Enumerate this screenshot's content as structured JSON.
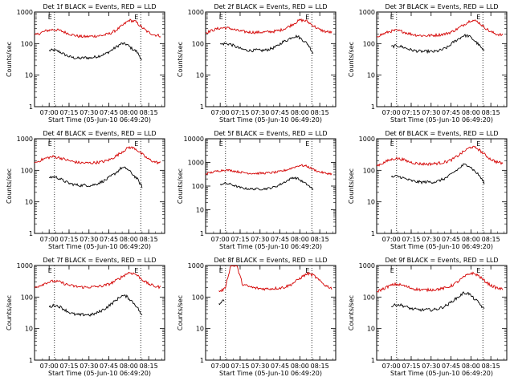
{
  "chart_data": [
    {
      "type": "line",
      "title": "Det 1f BLACK = Events, RED = LLD",
      "xlabel": "Start Time (05-Jun-10 06:49:20)",
      "ylabel": "Counts/sec",
      "x_ticks": [
        "07:00",
        "07:15",
        "07:30",
        "07:45",
        "08:00",
        "08:15"
      ],
      "y_ticks": [
        "1",
        "10",
        "100",
        "1000"
      ],
      "ylim": [
        1,
        1000
      ],
      "log_y": true,
      "markers": [
        {
          "x": "07:04",
          "label": "E"
        },
        {
          "x": "08:09",
          "label": "E"
        }
      ],
      "series": [
        {
          "name": "Events",
          "color": "#000000",
          "x_start": "07:00",
          "x_end": "08:10",
          "values": [
            60,
            62,
            55,
            45,
            38,
            35,
            34,
            36,
            35,
            38,
            42,
            48,
            60,
            78,
            100,
            95,
            70,
            55,
            30
          ]
        },
        {
          "name": "LLD",
          "color": "#d40000",
          "x_start": "06:49",
          "x_end": "08:24",
          "values": [
            180,
            220,
            260,
            280,
            260,
            220,
            190,
            170,
            165,
            170,
            175,
            185,
            210,
            270,
            380,
            550,
            500,
            330,
            230,
            190,
            175
          ]
        }
      ]
    },
    {
      "type": "line",
      "title": "Det 2f BLACK = Events, RED = LLD",
      "xlabel": "Start Time (05-Jun-10 06:49:20)",
      "ylabel": "Counts/sec",
      "x_ticks": [
        "07:00",
        "07:15",
        "07:30",
        "07:45",
        "08:00",
        "08:15"
      ],
      "y_ticks": [
        "1",
        "10",
        "100",
        "1000"
      ],
      "ylim": [
        1,
        1000
      ],
      "log_y": true,
      "markers": [
        {
          "x": "07:04",
          "label": "E"
        },
        {
          "x": "08:09",
          "label": "E"
        }
      ],
      "series": [
        {
          "name": "Events",
          "color": "#000000",
          "x_start": "07:00",
          "x_end": "08:10",
          "values": [
            95,
            100,
            95,
            80,
            68,
            62,
            60,
            62,
            60,
            63,
            70,
            82,
            110,
            130,
            165,
            170,
            130,
            95,
            50
          ]
        },
        {
          "name": "LLD",
          "color": "#d40000",
          "x_start": "06:49",
          "x_end": "08:24",
          "values": [
            220,
            260,
            300,
            320,
            300,
            260,
            240,
            230,
            225,
            230,
            235,
            245,
            270,
            330,
            430,
            560,
            520,
            380,
            280,
            240,
            225
          ]
        }
      ]
    },
    {
      "type": "line",
      "title": "Det 3f BLACK = Events, RED = LLD",
      "xlabel": "Start Time (05-Jun-10 06:49:20)",
      "ylabel": "Counts/sec",
      "x_ticks": [
        "07:00",
        "07:15",
        "07:30",
        "07:45",
        "08:00",
        "08:15"
      ],
      "y_ticks": [
        "1",
        "10",
        "100",
        "1000"
      ],
      "ylim": [
        1,
        1000
      ],
      "log_y": true,
      "markers": [
        {
          "x": "07:04",
          "label": "E"
        },
        {
          "x": "08:09",
          "label": "E"
        }
      ],
      "series": [
        {
          "name": "Events",
          "color": "#000000",
          "x_start": "07:00",
          "x_end": "08:10",
          "values": [
            80,
            85,
            80,
            70,
            62,
            58,
            56,
            57,
            55,
            58,
            65,
            78,
            110,
            140,
            180,
            175,
            130,
            90,
            55
          ]
        },
        {
          "name": "LLD",
          "color": "#d40000",
          "x_start": "06:49",
          "x_end": "08:24",
          "values": [
            170,
            200,
            240,
            260,
            245,
            210,
            190,
            180,
            178,
            182,
            190,
            205,
            240,
            310,
            420,
            560,
            500,
            340,
            240,
            200,
            185
          ]
        }
      ]
    },
    {
      "type": "line",
      "title": "Det 4f BLACK = Events, RED = LLD",
      "xlabel": "Start Time (05-Jun-10 06:49:20)",
      "ylabel": "Counts/sec",
      "x_ticks": [
        "07:00",
        "07:15",
        "07:30",
        "07:45",
        "08:00",
        "08:15"
      ],
      "y_ticks": [
        "1",
        "10",
        "100",
        "1000"
      ],
      "ylim": [
        1,
        1000
      ],
      "log_y": true,
      "markers": [
        {
          "x": "07:04",
          "label": "E"
        },
        {
          "x": "08:09",
          "label": "E"
        }
      ],
      "series": [
        {
          "name": "Events",
          "color": "#000000",
          "x_start": "07:00",
          "x_end": "08:10",
          "values": [
            60,
            62,
            55,
            45,
            38,
            35,
            33,
            34,
            33,
            36,
            42,
            50,
            65,
            85,
            120,
            115,
            80,
            55,
            30
          ]
        },
        {
          "name": "LLD",
          "color": "#d40000",
          "x_start": "06:49",
          "x_end": "08:24",
          "values": [
            170,
            210,
            250,
            270,
            250,
            215,
            190,
            175,
            170,
            172,
            178,
            190,
            220,
            290,
            400,
            540,
            490,
            330,
            230,
            185,
            170
          ]
        }
      ]
    },
    {
      "type": "line",
      "title": "Det 5f BLACK = Events, RED = LLD",
      "xlabel": "Start Time (05-Jun-10 06:49:20)",
      "ylabel": "Counts/sec",
      "x_ticks": [
        "07:00",
        "07:15",
        "07:30",
        "07:45",
        "08:00",
        "08:15"
      ],
      "y_ticks": [
        "1",
        "10",
        "100",
        "1000",
        "10000"
      ],
      "ylim": [
        1,
        10000
      ],
      "log_y": true,
      "markers": [
        {
          "x": "07:04",
          "label": "E"
        },
        {
          "x": "08:09",
          "label": "E"
        }
      ],
      "series": [
        {
          "name": "Events",
          "color": "#000000",
          "x_start": "07:00",
          "x_end": "08:10",
          "values": [
            120,
            130,
            120,
            100,
            85,
            78,
            75,
            76,
            75,
            78,
            85,
            100,
            130,
            170,
            230,
            210,
            150,
            110,
            70
          ]
        },
        {
          "name": "LLD",
          "color": "#d40000",
          "x_start": "06:49",
          "x_end": "08:24",
          "values": [
            330,
            380,
            440,
            480,
            460,
            410,
            370,
            350,
            345,
            350,
            360,
            380,
            420,
            500,
            620,
            760,
            700,
            520,
            400,
            350,
            330
          ]
        }
      ]
    },
    {
      "type": "line",
      "title": "Det 6f BLACK = Events, RED = LLD",
      "xlabel": "Start Time (05-Jun-10 06:49:20)",
      "ylabel": "Counts/sec",
      "x_ticks": [
        "07:00",
        "07:15",
        "07:30",
        "07:45",
        "08:00",
        "08:15"
      ],
      "y_ticks": [
        "1",
        "10",
        "100",
        "1000"
      ],
      "ylim": [
        1,
        1000
      ],
      "log_y": true,
      "markers": [
        {
          "x": "07:04",
          "label": "E"
        },
        {
          "x": "08:09",
          "label": "E"
        }
      ],
      "series": [
        {
          "name": "Events",
          "color": "#000000",
          "x_start": "07:00",
          "x_end": "08:10",
          "values": [
            60,
            65,
            60,
            52,
            46,
            43,
            42,
            43,
            42,
            45,
            52,
            62,
            85,
            110,
            150,
            145,
            100,
            70,
            40
          ]
        },
        {
          "name": "LLD",
          "color": "#d40000",
          "x_start": "06:49",
          "x_end": "08:24",
          "values": [
            140,
            170,
            210,
            240,
            225,
            190,
            170,
            160,
            158,
            162,
            170,
            185,
            220,
            300,
            420,
            560,
            490,
            330,
            230,
            185,
            165
          ]
        }
      ]
    },
    {
      "type": "line",
      "title": "Det 7f BLACK = Events, RED = LLD",
      "xlabel": "Start Time (05-Jun-10 06:49:20)",
      "ylabel": "Counts/sec",
      "x_ticks": [
        "07:00",
        "07:15",
        "07:30",
        "07:45",
        "08:00",
        "08:15"
      ],
      "y_ticks": [
        "1",
        "10",
        "100",
        "1000"
      ],
      "ylim": [
        1,
        1000
      ],
      "log_y": true,
      "markers": [
        {
          "x": "07:04",
          "label": "E"
        },
        {
          "x": "08:09",
          "label": "E"
        }
      ],
      "series": [
        {
          "name": "Events",
          "color": "#000000",
          "x_start": "07:00",
          "x_end": "08:10",
          "values": [
            48,
            55,
            50,
            40,
            32,
            28,
            27,
            28,
            27,
            30,
            36,
            45,
            60,
            80,
            110,
            105,
            75,
            50,
            25
          ]
        },
        {
          "name": "LLD",
          "color": "#d40000",
          "x_start": "06:49",
          "x_end": "08:24",
          "values": [
            200,
            240,
            290,
            320,
            300,
            255,
            225,
            210,
            205,
            208,
            215,
            230,
            265,
            340,
            460,
            600,
            540,
            370,
            265,
            220,
            205
          ]
        }
      ]
    },
    {
      "type": "line",
      "title": "Det 8f BLACK = Events, RED = LLD",
      "xlabel": "Start Time (05-Jun-10 06:49:20)",
      "ylabel": "Counts/sec",
      "x_ticks": [
        "07:00",
        "07:15",
        "07:30",
        "07:45",
        "08:00",
        "08:15"
      ],
      "y_ticks": [
        "1",
        "10",
        "100",
        "1000"
      ],
      "ylim": [
        1,
        1000
      ],
      "log_y": true,
      "markers": [
        {
          "x": "07:04",
          "label": "E"
        },
        {
          "x": "08:09",
          "label": "E"
        }
      ],
      "series": [
        {
          "name": "Events",
          "color": "#000000",
          "x_start": "06:59",
          "x_end": "07:03",
          "values": [
            60,
            70,
            75,
            80
          ]
        },
        {
          "name": "LLD",
          "color": "#d40000",
          "x_start": "06:59",
          "x_end": "08:24",
          "values": [
            150,
            180,
            1000,
            1000,
            250,
            215,
            195,
            185,
            182,
            185,
            192,
            205,
            240,
            320,
            440,
            560,
            480,
            320,
            230,
            190
          ]
        }
      ]
    },
    {
      "type": "line",
      "title": "Det 9f BLACK = Events, RED = LLD",
      "xlabel": "Start Time (05-Jun-10 06:49:20)",
      "ylabel": "Counts/sec",
      "x_ticks": [
        "07:00",
        "07:15",
        "07:30",
        "07:45",
        "08:00",
        "08:15"
      ],
      "y_ticks": [
        "1",
        "10",
        "100",
        "1000"
      ],
      "ylim": [
        1,
        1000
      ],
      "log_y": true,
      "markers": [
        {
          "x": "07:04",
          "label": "E"
        },
        {
          "x": "08:09",
          "label": "E"
        }
      ],
      "series": [
        {
          "name": "Events",
          "color": "#000000",
          "x_start": "07:00",
          "x_end": "08:10",
          "values": [
            50,
            58,
            55,
            48,
            42,
            40,
            39,
            40,
            39,
            42,
            48,
            58,
            78,
            100,
            135,
            130,
            90,
            65,
            40
          ]
        },
        {
          "name": "LLD",
          "color": "#d40000",
          "x_start": "06:49",
          "x_end": "08:24",
          "values": [
            150,
            180,
            225,
            255,
            240,
            205,
            180,
            170,
            168,
            172,
            180,
            195,
            235,
            320,
            450,
            580,
            500,
            340,
            240,
            195,
            175
          ]
        }
      ]
    }
  ]
}
